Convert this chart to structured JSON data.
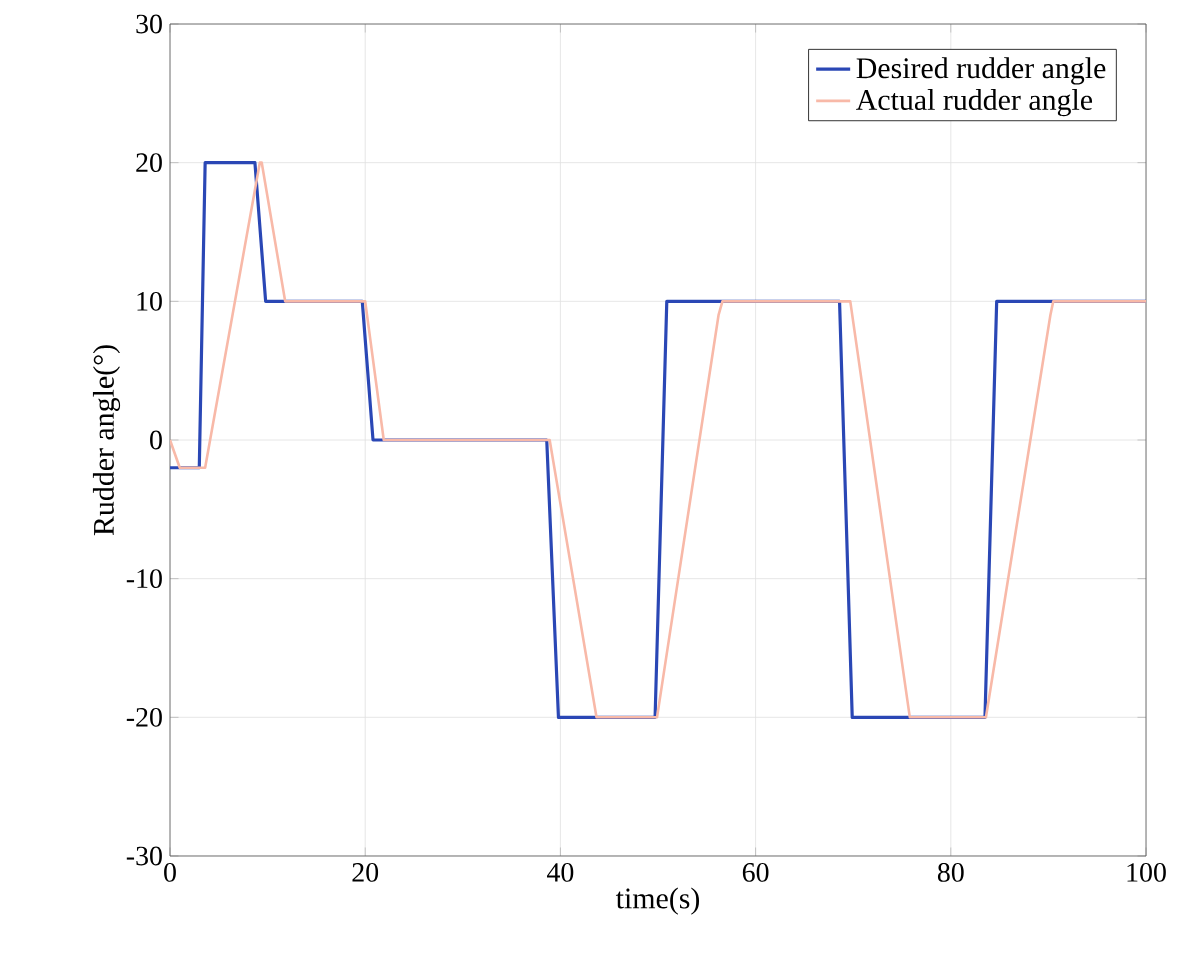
{
  "chart_data": {
    "type": "line",
    "xlabel": "time(s)",
    "ylabel": "Rudder angle(°)",
    "xlim": [
      0,
      100
    ],
    "ylim": [
      -30,
      30
    ],
    "xticks": [
      0,
      20,
      40,
      60,
      80,
      100
    ],
    "yticks": [
      -30,
      -20,
      -10,
      0,
      10,
      20,
      30
    ],
    "grid": true,
    "legend": "top right",
    "marker": "none",
    "line_style": "solid",
    "series": [
      {
        "name": "Desired rudder angle",
        "color": "#2a47b5",
        "x": [
          0,
          3,
          3.6,
          8.7,
          9.8,
          19.7,
          20.8,
          38.6,
          39.8,
          49.7,
          50.9,
          68.6,
          69.9,
          83.5,
          84.7,
          100
        ],
        "values": [
          -2,
          -2,
          20,
          20,
          10,
          10,
          0,
          0,
          -20,
          -20,
          10,
          10,
          -20,
          -20,
          10,
          10
        ]
      },
      {
        "name": "Actual rudder angle",
        "color": "#f8b9a8",
        "x": [
          0,
          1,
          3.6,
          9.2,
          9.4,
          11.8,
          20,
          21.9,
          38.9,
          43.7,
          49.9,
          56.2,
          56.6,
          69.7,
          75.8,
          83.6,
          90.2,
          90.5,
          100
        ],
        "values": [
          0,
          -2,
          -2,
          20,
          20,
          10,
          10,
          0,
          0,
          -20,
          -20,
          9,
          10,
          10,
          -20,
          -20,
          9,
          10,
          10
        ]
      }
    ]
  }
}
